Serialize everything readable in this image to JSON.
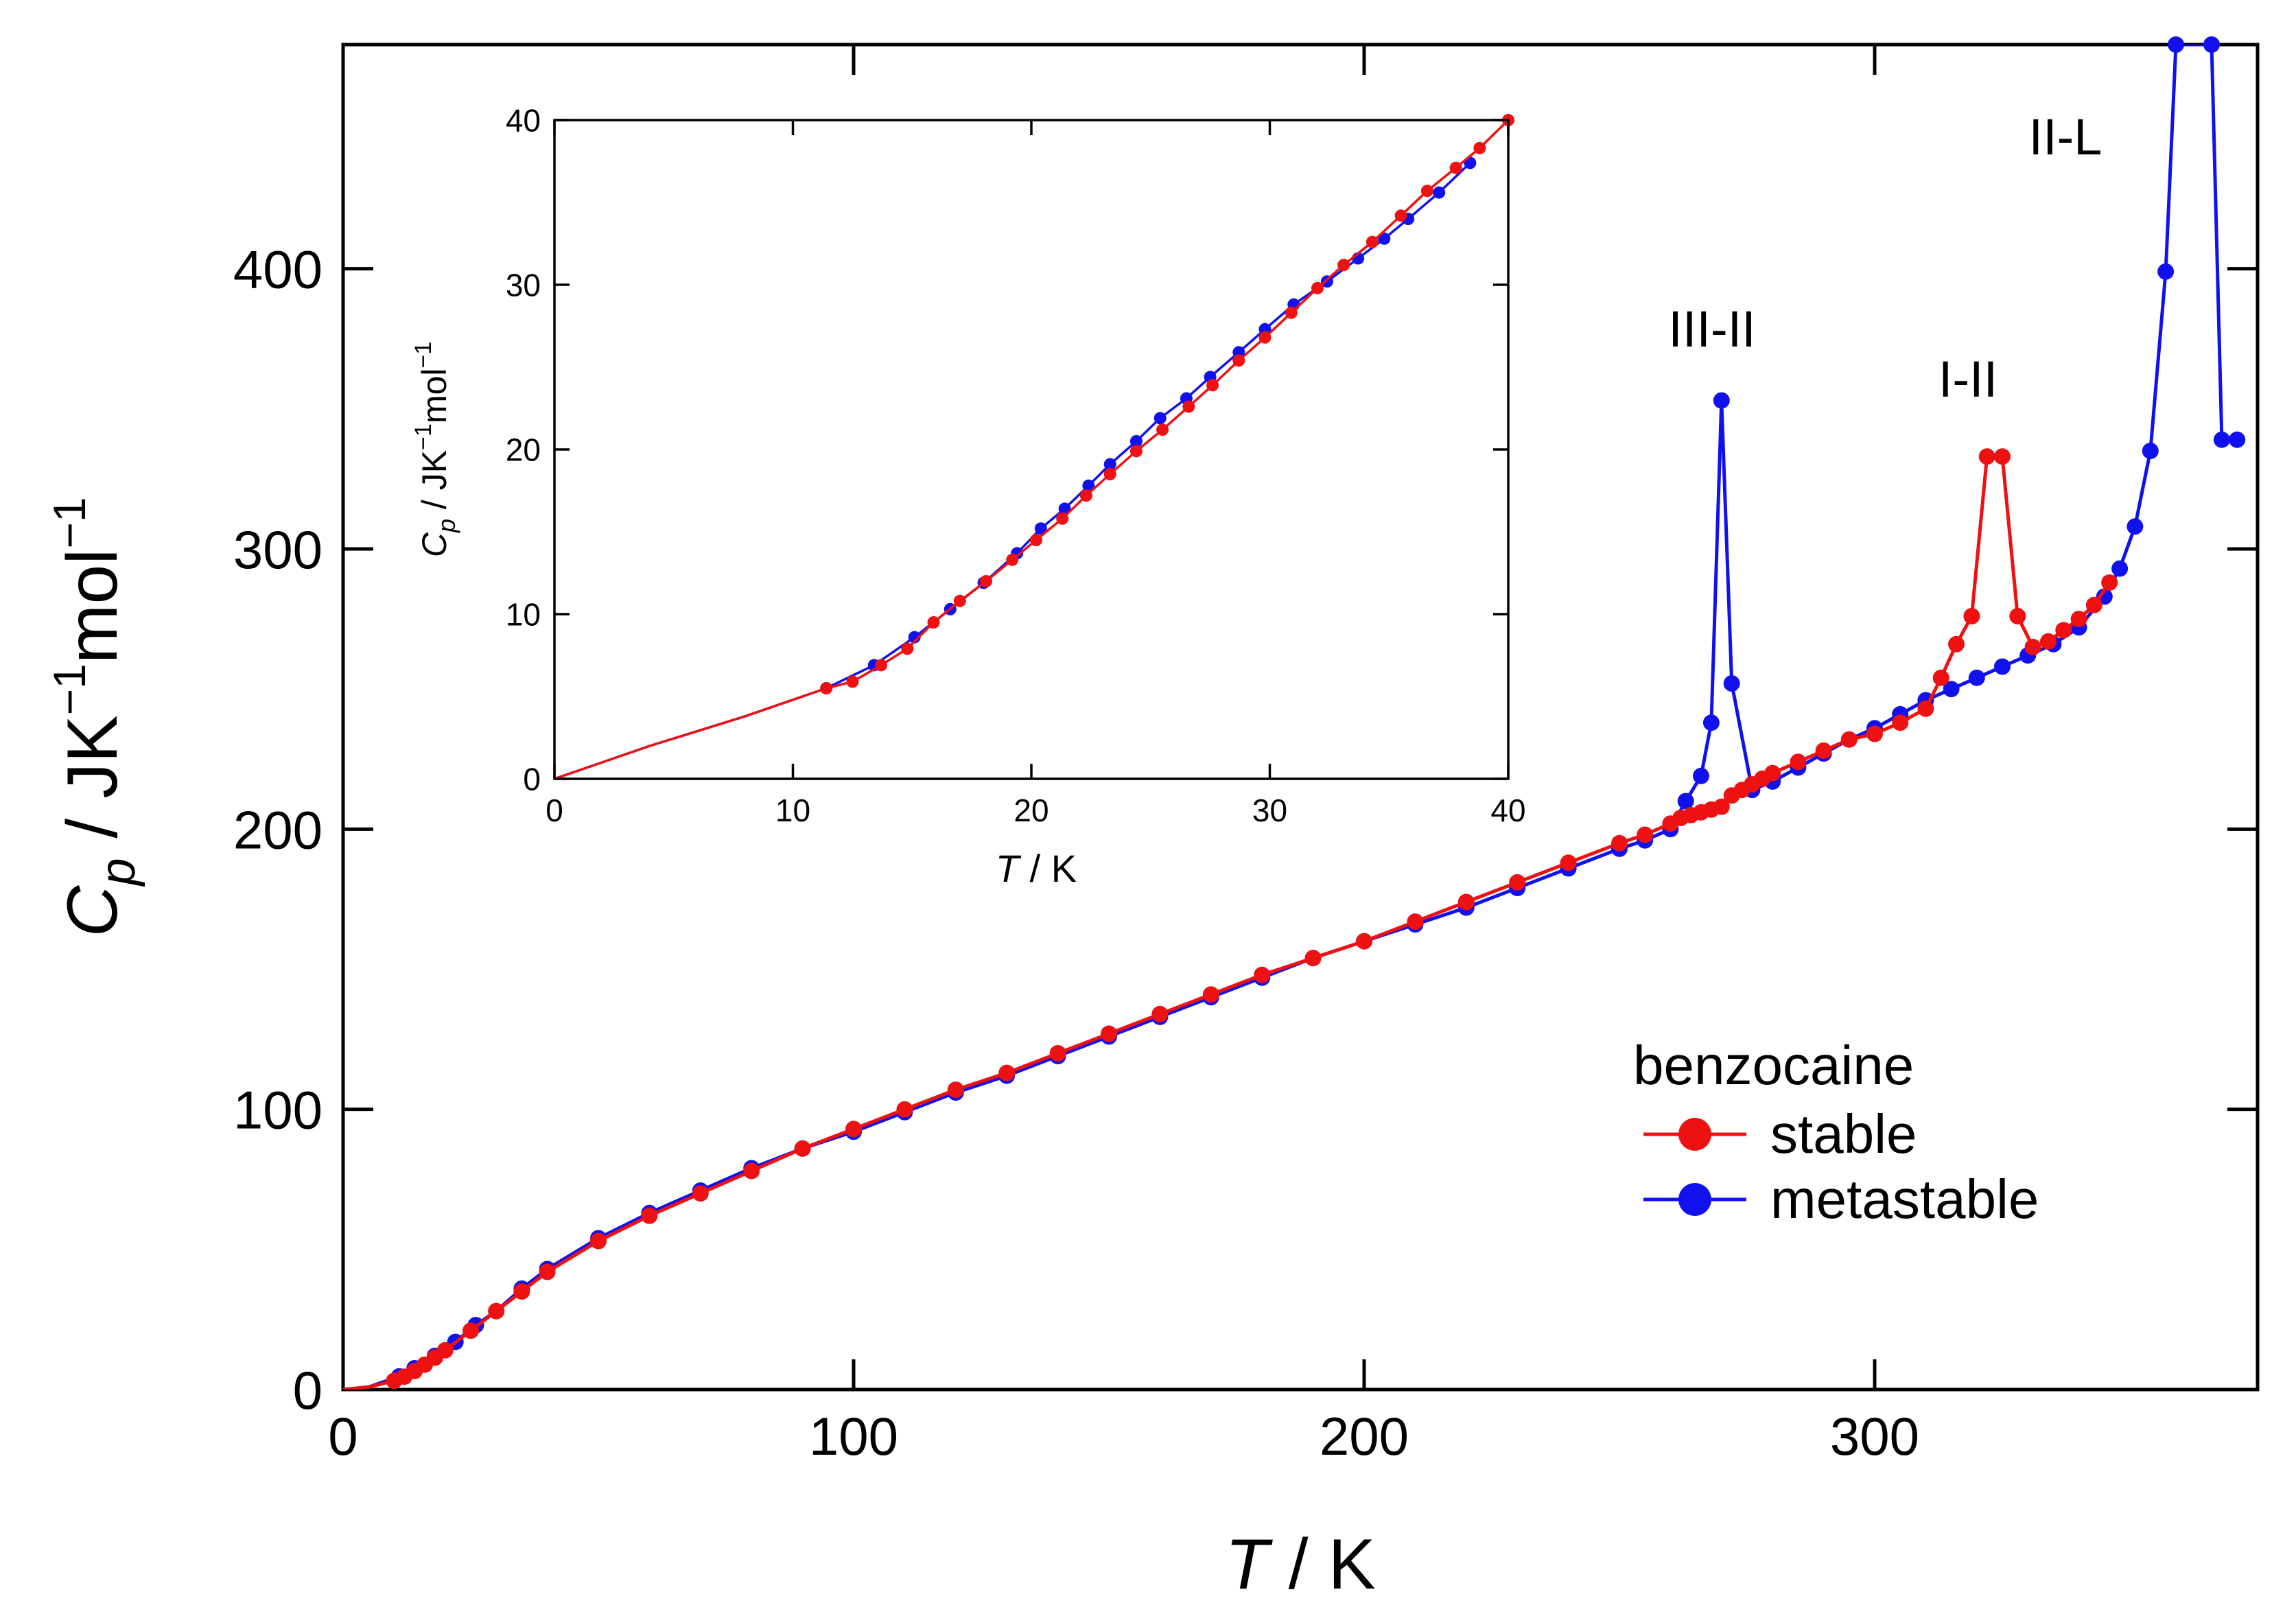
{
  "colors": {
    "stable": "#ee1111",
    "metastable": "#1111ee",
    "axis": "#000000"
  },
  "chart_data": [
    {
      "id": "main",
      "type": "line",
      "xlabel_italic": "T",
      "xlabel_rest": " / K",
      "ylabel_italic": "C",
      "ylabel_sub": "p",
      "ylabel_rest": " / JK",
      "ylabel_sup1": "−1",
      "ylabel_mid": "mol",
      "ylabel_sup2": "−1",
      "xlim": [
        0,
        375
      ],
      "ylim": [
        0,
        480
      ],
      "xticks": [
        0,
        100,
        200,
        300
      ],
      "yticks": [
        0,
        100,
        200,
        300,
        400
      ],
      "legend": {
        "title": "benzocaine",
        "position": "lower-right",
        "entries": [
          "stable",
          "metastable"
        ]
      },
      "annotations": [
        {
          "text": "III-II",
          "x": 269,
          "y": 370
        },
        {
          "text": "I-II",
          "x": 320,
          "y": 342
        },
        {
          "text": "II-L",
          "x": 354,
          "y": 448
        }
      ],
      "series": [
        {
          "name": "stable",
          "x": [
            0,
            5,
            10,
            12,
            14,
            16,
            18,
            20,
            25,
            30,
            35,
            40,
            50,
            60,
            70,
            80,
            90,
            100,
            110,
            120,
            130,
            140,
            150,
            160,
            170,
            180,
            190,
            200,
            210,
            220,
            230,
            240,
            250,
            255,
            260,
            262,
            264,
            266,
            268,
            270,
            272,
            274,
            276,
            278,
            280,
            285,
            290,
            295,
            300,
            305,
            310,
            313,
            316,
            319,
            322,
            325,
            328,
            331,
            334,
            337,
            340,
            343,
            346
          ],
          "y": [
            0,
            0.9,
            3.1,
            4.6,
            6.6,
            8.9,
            11.4,
            14,
            21,
            28,
            35,
            42,
            53,
            62,
            70,
            78,
            86,
            93,
            100,
            107,
            113,
            120,
            127,
            134,
            141,
            148,
            154,
            160,
            167,
            174,
            181,
            188,
            195,
            198,
            202,
            204,
            205,
            206,
            207,
            208,
            212,
            214,
            216,
            218,
            220,
            224,
            228,
            232,
            234,
            238,
            243,
            254,
            266,
            276,
            333,
            333,
            276,
            265,
            267,
            271,
            275,
            280,
            288
          ]
        },
        {
          "name": "metastable",
          "x": [
            0,
            5,
            11,
            14,
            18,
            22,
            26,
            30,
            35,
            40,
            50,
            60,
            70,
            80,
            90,
            100,
            110,
            120,
            130,
            140,
            150,
            160,
            170,
            180,
            190,
            200,
            210,
            220,
            230,
            240,
            250,
            255,
            260,
            263,
            266,
            268,
            270,
            272,
            276,
            280,
            285,
            290,
            295,
            300,
            305,
            310,
            315,
            320,
            325,
            330,
            335,
            340,
            345,
            348,
            351,
            354,
            357,
            359,
            366,
            368,
            371
          ],
          "y": [
            0,
            0.9,
            4.7,
            7.6,
            12,
            17,
            23,
            28,
            36,
            43,
            54,
            63,
            71,
            79,
            86,
            92,
            99,
            106,
            112,
            119,
            126,
            133,
            140,
            147,
            154,
            160,
            166,
            172,
            179,
            186,
            193,
            196,
            200,
            210,
            219,
            238,
            353,
            252,
            214,
            217,
            222,
            227,
            232,
            236,
            241,
            246,
            250,
            254,
            258,
            262,
            266,
            272,
            283,
            293,
            308,
            335,
            399,
            480,
            480,
            339,
            339
          ]
        }
      ]
    },
    {
      "id": "inset",
      "type": "line",
      "xlabel_italic": "T",
      "xlabel_rest": " / K",
      "ylabel_italic": "C",
      "ylabel_sub": "p",
      "ylabel_rest": " / JK",
      "ylabel_sup1": "−1",
      "ylabel_mid": "mol",
      "ylabel_sup2": "−1",
      "xlim": [
        0,
        40
      ],
      "ylim": [
        0,
        40
      ],
      "xticks": [
        0,
        10,
        20,
        30,
        40
      ],
      "yticks": [
        0,
        10,
        20,
        30,
        40
      ],
      "series": [
        {
          "name": "stable",
          "x": [
            0,
            2,
            4,
            6,
            8,
            10,
            11.4,
            12.5,
            13.7,
            14.8,
            15.9,
            17,
            18.1,
            19.2,
            20.2,
            21.3,
            22.3,
            23.3,
            24.4,
            25.5,
            26.6,
            27.6,
            28.7,
            29.8,
            30.9,
            32,
            33.1,
            34.3,
            35.5,
            36.6,
            37.8,
            38.8,
            40
          ],
          "y": [
            0,
            1,
            2,
            2.9,
            3.8,
            4.8,
            5.5,
            5.9,
            6.9,
            7.9,
            9.5,
            10.8,
            12,
            13.3,
            14.5,
            15.8,
            17.2,
            18.5,
            19.9,
            21.2,
            22.6,
            23.9,
            25.4,
            26.8,
            28.3,
            29.8,
            31.2,
            32.6,
            34.2,
            35.7,
            37.1,
            38.3,
            40
          ]
        },
        {
          "name": "metastable",
          "x": [
            0,
            2,
            4,
            6,
            8,
            10,
            11.4,
            13.4,
            15.1,
            16.6,
            18.0,
            19.4,
            20.4,
            21.4,
            22.4,
            23.3,
            24.4,
            25.4,
            26.5,
            27.5,
            28.7,
            29.8,
            31,
            32.4,
            33.7,
            34.8,
            35.8,
            37.1,
            38.4
          ],
          "y": [
            0,
            1,
            2,
            2.9,
            3.8,
            4.8,
            5.5,
            6.9,
            8.6,
            10.3,
            11.9,
            13.7,
            15.2,
            16.4,
            17.8,
            19.1,
            20.5,
            21.9,
            23.1,
            24.4,
            25.9,
            27.3,
            28.8,
            30.2,
            31.6,
            32.8,
            34.0,
            35.6,
            37.4
          ]
        }
      ]
    }
  ]
}
